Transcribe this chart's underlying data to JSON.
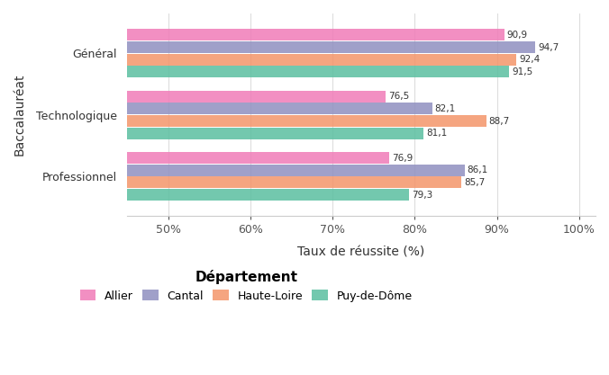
{
  "categories": [
    "Général",
    "Technologique",
    "Professionnel"
  ],
  "departments": [
    "Allier",
    "Cantal",
    "Haute-Loire",
    "Puy-de-Dôme"
  ],
  "colors": [
    "#F07CB8",
    "#9090C0",
    "#F4956A",
    "#5BBFA0"
  ],
  "values": {
    "Général": [
      90.9,
      94.7,
      92.4,
      91.5
    ],
    "Technologique": [
      76.5,
      82.1,
      88.7,
      81.1
    ],
    "Professionnel": [
      76.9,
      86.1,
      85.7,
      79.3
    ]
  },
  "xlabel": "Taux de réussite (%)",
  "ylabel": "Baccalauréat",
  "xlim": [
    45,
    102
  ],
  "xticks": [
    50,
    60,
    70,
    80,
    90,
    100
  ],
  "xtick_labels": [
    "50%",
    "60%",
    "70%",
    "80%",
    "90%",
    "100%"
  ],
  "bar_height": 0.19,
  "bar_gap": 0.01,
  "legend_title": "Département",
  "background_color": "#ffffff",
  "grid_color": "#dddddd"
}
